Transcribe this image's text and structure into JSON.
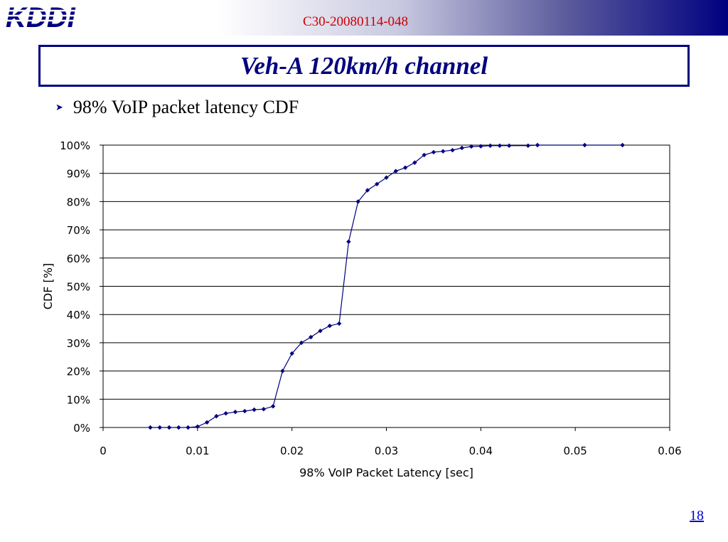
{
  "header": {
    "logo_text": "KDDI",
    "doc_id": "C30-20080114-048"
  },
  "slide": {
    "title": "Veh-A 120km/h channel",
    "bullet": "98% VoIP packet latency CDF",
    "page_number": "18"
  },
  "colors": {
    "accent": "#000080",
    "doc_id": "#cc0000",
    "series": "#000080"
  },
  "chart_data": {
    "type": "line",
    "title": "",
    "xlabel": "98% VoIP Packet Latency [sec]",
    "ylabel": "CDF [%]",
    "xlim": [
      0,
      0.06
    ],
    "ylim": [
      0,
      100
    ],
    "x_ticks": [
      0,
      0.01,
      0.02,
      0.03,
      0.04,
      0.05,
      0.06
    ],
    "x_tick_labels": [
      "0",
      "0.01",
      "0.02",
      "0.03",
      "0.04",
      "0.05",
      "0.06"
    ],
    "y_ticks": [
      0,
      10,
      20,
      30,
      40,
      50,
      60,
      70,
      80,
      90,
      100
    ],
    "y_tick_labels": [
      "0%",
      "10%",
      "20%",
      "30%",
      "40%",
      "50%",
      "60%",
      "70%",
      "80%",
      "90%",
      "100%"
    ],
    "grid": "horizontal",
    "marker": "diamond",
    "series": [
      {
        "x": [
          0.005,
          0.006,
          0.007,
          0.008,
          0.009,
          0.01,
          0.011,
          0.012,
          0.013,
          0.014,
          0.015,
          0.016,
          0.017,
          0.018,
          0.019,
          0.02,
          0.021,
          0.022,
          0.023,
          0.024,
          0.025,
          0.026,
          0.027,
          0.028,
          0.029,
          0.03,
          0.031,
          0.032,
          0.033,
          0.034,
          0.035,
          0.036,
          0.037,
          0.038,
          0.039,
          0.04,
          0.041,
          0.042,
          0.043,
          0.045,
          0.046,
          0.051,
          0.055
        ],
        "y": [
          0,
          0,
          0,
          0,
          0,
          0.3,
          1.8,
          4,
          5,
          5.5,
          5.8,
          6.3,
          6.5,
          7.5,
          20,
          26.2,
          30,
          32,
          34.2,
          36,
          36.8,
          65.8,
          80,
          84,
          86.2,
          88.5,
          90.8,
          92,
          93.8,
          96.5,
          97.5,
          97.8,
          98.2,
          99,
          99.5,
          99.6,
          99.8,
          99.8,
          99.8,
          99.8,
          100,
          100,
          100
        ]
      }
    ]
  }
}
